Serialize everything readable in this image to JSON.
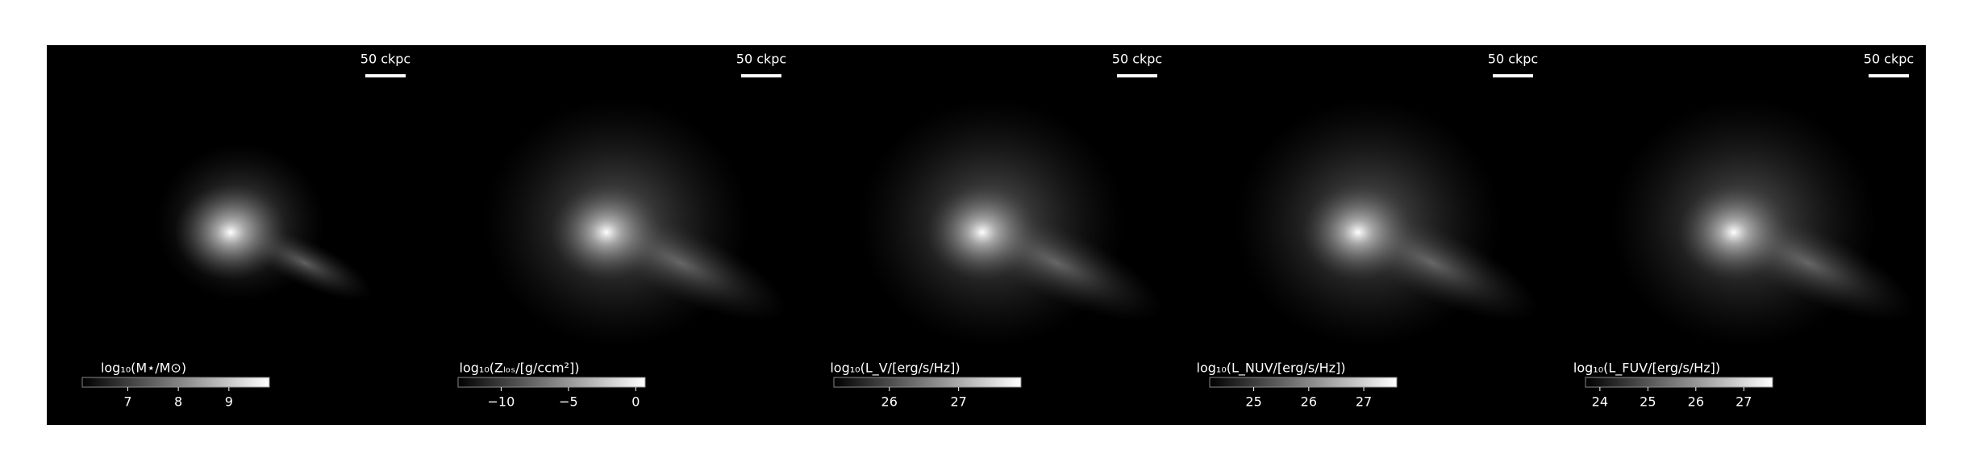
{
  "chart_data": [
    {
      "type": "image",
      "scale_bar_label": "50 ckpc",
      "colorbar_label": "log₁₀(M⋆/M⊙)",
      "clim": [
        6.1,
        9.8
      ],
      "cticks": [
        7,
        8,
        9
      ]
    },
    {
      "type": "image",
      "scale_bar_label": "50 ckpc",
      "colorbar_label": "log₁₀(Zₗₒₛ/[g/ccm²])",
      "clim": [
        -13.2,
        0.7
      ],
      "cticks": [
        {
          "value": -10,
          "label": "−10"
        },
        {
          "value": -5,
          "label": "−5"
        },
        0
      ]
    },
    {
      "type": "image",
      "scale_bar_label": "50 ckpc",
      "colorbar_label": "log₁₀(L_V/[erg/s/Hz])",
      "clim": [
        25.2,
        27.9
      ],
      "cticks": [
        26,
        27
      ]
    },
    {
      "type": "image",
      "scale_bar_label": "50 ckpc",
      "colorbar_label": "log₁₀(L_NUV/[erg/s/Hz])",
      "clim": [
        24.2,
        27.6
      ],
      "cticks": [
        25,
        26,
        27
      ]
    },
    {
      "type": "image",
      "scale_bar_label": "50 ckpc",
      "colorbar_label": "log₁₀(L_FUV/[erg/s/Hz])",
      "clim": [
        23.7,
        27.6
      ],
      "cticks": [
        24,
        25,
        26,
        27
      ]
    }
  ]
}
